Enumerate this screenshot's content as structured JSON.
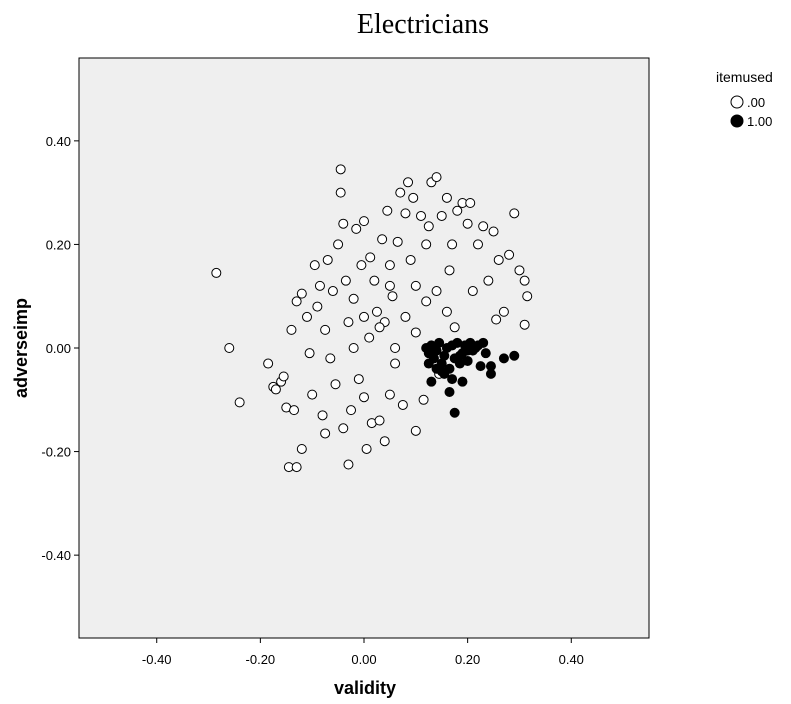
{
  "chart_data": {
    "type": "scatter",
    "title": "Electricians",
    "xlabel": "validity",
    "ylabel": "adverseimp",
    "xlim": [
      -0.55,
      0.55
    ],
    "ylim": [
      -0.56,
      0.56
    ],
    "x_ticks": [
      -0.4,
      -0.2,
      0.0,
      0.2,
      0.4
    ],
    "y_ticks": [
      -0.4,
      -0.2,
      0.0,
      0.2,
      0.4
    ],
    "x_tick_labels": [
      "-0.40",
      "-0.20",
      "0.00",
      "0.20",
      "0.40"
    ],
    "y_tick_labels": [
      "-0.40",
      "-0.20",
      "0.00",
      "0.20",
      "0.40"
    ],
    "grid": false,
    "legend": {
      "title": "itemused",
      "position": "top-right outside",
      "entries": [
        {
          "label": ".00",
          "marker": "open-circle"
        },
        {
          "label": "1.00",
          "marker": "filled-circle"
        }
      ]
    },
    "colors": {
      "plot_background": "#efefef",
      "marker_edge": "#000000",
      "open_fill": "#ffffff",
      "filled_fill": "#000000"
    },
    "series": [
      {
        "name": ".00",
        "marker": "open-circle",
        "points": [
          [
            -0.285,
            0.145
          ],
          [
            -0.26,
            0.0
          ],
          [
            -0.24,
            -0.105
          ],
          [
            -0.185,
            -0.03
          ],
          [
            -0.175,
            -0.075
          ],
          [
            -0.17,
            -0.08
          ],
          [
            -0.16,
            -0.065
          ],
          [
            -0.155,
            -0.055
          ],
          [
            -0.15,
            -0.115
          ],
          [
            -0.145,
            -0.23
          ],
          [
            -0.13,
            -0.23
          ],
          [
            -0.12,
            -0.195
          ],
          [
            -0.135,
            -0.12
          ],
          [
            -0.14,
            0.035
          ],
          [
            -0.13,
            0.09
          ],
          [
            -0.12,
            0.105
          ],
          [
            -0.11,
            0.06
          ],
          [
            -0.105,
            -0.01
          ],
          [
            -0.1,
            -0.09
          ],
          [
            -0.095,
            0.16
          ],
          [
            -0.09,
            0.08
          ],
          [
            -0.085,
            0.12
          ],
          [
            -0.08,
            -0.13
          ],
          [
            -0.075,
            -0.165
          ],
          [
            -0.075,
            0.035
          ],
          [
            -0.07,
            0.17
          ],
          [
            -0.065,
            -0.02
          ],
          [
            -0.06,
            0.11
          ],
          [
            -0.055,
            -0.07
          ],
          [
            -0.05,
            0.2
          ],
          [
            -0.045,
            0.3
          ],
          [
            -0.045,
            0.345
          ],
          [
            -0.04,
            0.24
          ],
          [
            -0.04,
            -0.155
          ],
          [
            -0.035,
            0.13
          ],
          [
            -0.03,
            -0.225
          ],
          [
            -0.03,
            0.05
          ],
          [
            -0.025,
            -0.12
          ],
          [
            -0.02,
            0.095
          ],
          [
            -0.015,
            0.23
          ],
          [
            -0.01,
            -0.06
          ],
          [
            -0.005,
            0.16
          ],
          [
            0.0,
            0.245
          ],
          [
            0.0,
            -0.095
          ],
          [
            0.005,
            -0.195
          ],
          [
            0.01,
            0.02
          ],
          [
            0.012,
            0.175
          ],
          [
            0.015,
            -0.145
          ],
          [
            0.02,
            0.13
          ],
          [
            0.025,
            0.07
          ],
          [
            0.03,
            -0.14
          ],
          [
            0.035,
            0.21
          ],
          [
            0.04,
            -0.18
          ],
          [
            0.04,
            0.05
          ],
          [
            0.045,
            0.265
          ],
          [
            0.05,
            0.16
          ],
          [
            0.05,
            -0.09
          ],
          [
            0.055,
            0.1
          ],
          [
            0.06,
            -0.03
          ],
          [
            0.065,
            0.205
          ],
          [
            0.07,
            0.3
          ],
          [
            0.075,
            -0.11
          ],
          [
            0.08,
            0.26
          ],
          [
            0.085,
            0.32
          ],
          [
            0.09,
            0.17
          ],
          [
            0.095,
            0.29
          ],
          [
            0.1,
            -0.16
          ],
          [
            0.1,
            0.12
          ],
          [
            0.11,
            0.255
          ],
          [
            0.115,
            -0.1
          ],
          [
            0.12,
            0.2
          ],
          [
            0.125,
            0.235
          ],
          [
            0.13,
            0.32
          ],
          [
            0.14,
            0.33
          ],
          [
            0.145,
            -0.05
          ],
          [
            0.15,
            0.255
          ],
          [
            0.16,
            0.29
          ],
          [
            0.165,
            0.15
          ],
          [
            0.17,
            0.2
          ],
          [
            0.175,
            0.04
          ],
          [
            0.18,
            0.265
          ],
          [
            0.19,
            0.28
          ],
          [
            0.2,
            0.24
          ],
          [
            0.205,
            0.28
          ],
          [
            0.21,
            0.11
          ],
          [
            0.22,
            0.2
          ],
          [
            0.23,
            0.235
          ],
          [
            0.24,
            0.13
          ],
          [
            0.25,
            0.225
          ],
          [
            0.255,
            0.055
          ],
          [
            0.26,
            0.17
          ],
          [
            0.27,
            0.07
          ],
          [
            0.28,
            0.18
          ],
          [
            0.29,
            0.26
          ],
          [
            0.3,
            0.15
          ],
          [
            0.31,
            0.13
          ],
          [
            0.31,
            0.045
          ],
          [
            0.315,
            0.1
          ],
          [
            0.03,
            0.04
          ],
          [
            0.05,
            0.12
          ],
          [
            0.08,
            0.06
          ],
          [
            0.1,
            0.03
          ],
          [
            0.12,
            0.09
          ],
          [
            0.14,
            0.11
          ],
          [
            0.16,
            0.07
          ],
          [
            0.06,
            0.0
          ],
          [
            0.0,
            0.06
          ],
          [
            -0.02,
            0.0
          ]
        ]
      },
      {
        "name": "1.00",
        "marker": "filled-circle",
        "points": [
          [
            0.12,
            0.0
          ],
          [
            0.125,
            -0.01
          ],
          [
            0.13,
            0.005
          ],
          [
            0.135,
            -0.02
          ],
          [
            0.14,
            -0.005
          ],
          [
            0.145,
            0.01
          ],
          [
            0.15,
            -0.03
          ],
          [
            0.155,
            -0.015
          ],
          [
            0.16,
            0.0
          ],
          [
            0.165,
            -0.04
          ],
          [
            0.17,
            -0.06
          ],
          [
            0.17,
            0.005
          ],
          [
            0.175,
            -0.02
          ],
          [
            0.18,
            0.01
          ],
          [
            0.185,
            -0.03
          ],
          [
            0.19,
            -0.01
          ],
          [
            0.195,
            0.005
          ],
          [
            0.2,
            -0.025
          ],
          [
            0.205,
            0.01
          ],
          [
            0.21,
            -0.005
          ],
          [
            0.215,
            0.0
          ],
          [
            0.22,
            0.005
          ],
          [
            0.225,
            -0.035
          ],
          [
            0.23,
            0.01
          ],
          [
            0.235,
            -0.01
          ],
          [
            0.245,
            -0.05
          ],
          [
            0.245,
            -0.035
          ],
          [
            0.27,
            -0.02
          ],
          [
            0.29,
            -0.015
          ],
          [
            0.13,
            -0.065
          ],
          [
            0.15,
            -0.045
          ],
          [
            0.165,
            -0.085
          ],
          [
            0.175,
            -0.125
          ],
          [
            0.19,
            -0.065
          ],
          [
            0.14,
            -0.04
          ],
          [
            0.155,
            -0.05
          ],
          [
            0.185,
            -0.015
          ],
          [
            0.2,
            -0.005
          ],
          [
            0.125,
            -0.03
          ]
        ]
      }
    ]
  }
}
